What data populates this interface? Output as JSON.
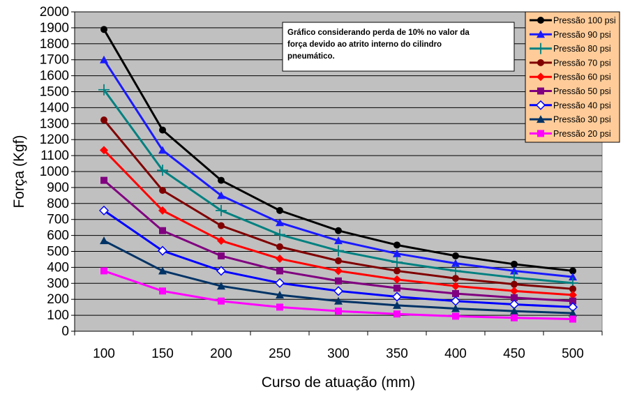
{
  "chart_data": {
    "type": "line",
    "xlabel": "Curso de atuação (mm)",
    "ylabel": "Força (Kgf)",
    "ylim": [
      0,
      2000
    ],
    "ytick_step": 100,
    "grid": true,
    "legend_position": "top-right",
    "categories": [
      "100",
      "150",
      "200",
      "250",
      "300",
      "350",
      "400",
      "450",
      "500"
    ],
    "annotation": {
      "lines": [
        "Gráfico considerando perda de 10% no valor da",
        "força devido ao atrito interno do cilindro",
        "pneumático."
      ]
    },
    "series": [
      {
        "name": "Pressão 100 psi",
        "color": "#000000",
        "marker": "circle",
        "values": [
          1890,
          1260,
          945,
          756,
          630,
          540,
          472,
          420,
          378
        ]
      },
      {
        "name": "Pressão 90 psi",
        "color": "#1a1aff",
        "marker": "triangle",
        "values": [
          1700,
          1134,
          850,
          680,
          567,
          486,
          425,
          378,
          340
        ]
      },
      {
        "name": "Pressão 80 psi",
        "color": "#008080",
        "marker": "plus",
        "values": [
          1512,
          1008,
          756,
          605,
          504,
          432,
          378,
          336,
          302
        ]
      },
      {
        "name": "Pressão 70 psi",
        "color": "#800000",
        "marker": "circle",
        "values": [
          1323,
          882,
          661,
          529,
          441,
          378,
          331,
          294,
          265
        ]
      },
      {
        "name": "Pressão 60 psi",
        "color": "#ff0000",
        "marker": "diamond",
        "values": [
          1134,
          756,
          567,
          454,
          378,
          324,
          283,
          252,
          227
        ]
      },
      {
        "name": "Pressão 50 psi",
        "color": "#800080",
        "marker": "square",
        "values": [
          945,
          630,
          472,
          378,
          315,
          270,
          236,
          210,
          189
        ]
      },
      {
        "name": "Pressão 40 psi",
        "color": "#0000ff",
        "marker": "diamond-open",
        "values": [
          756,
          504,
          378,
          302,
          252,
          216,
          189,
          168,
          151
        ]
      },
      {
        "name": "Pressão 30 psi",
        "color": "#003366",
        "marker": "triangle",
        "values": [
          567,
          378,
          283,
          227,
          189,
          162,
          142,
          126,
          113
        ]
      },
      {
        "name": "Pressão 20 psi",
        "color": "#ff00ff",
        "marker": "square",
        "values": [
          378,
          252,
          189,
          151,
          126,
          108,
          94,
          84,
          76
        ]
      }
    ],
    "colors": {
      "plot_background": "#c0c0c0",
      "legend_background": "#ffcc99",
      "gridline": "#000000"
    }
  }
}
